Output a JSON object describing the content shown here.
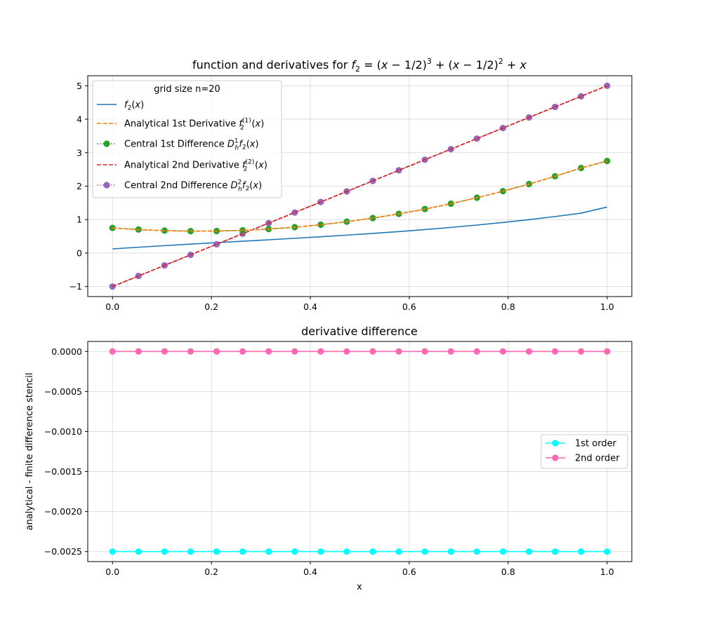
{
  "chart_data": [
    {
      "type": "line",
      "title_parts": {
        "prefix": "function and derivatives for ",
        "lhs": "f",
        "lhs_sub": "2",
        "eq": " = (x − ",
        "half": "1/2",
        "cube_close": ")",
        "cube_exp": "3",
        "plus": " + (x − ",
        "square_exp": "2",
        "tail": " + x"
      },
      "xlim": [
        -0.05,
        1.05
      ],
      "ylim": [
        -1.3,
        5.3
      ],
      "xticks": [
        0.0,
        0.2,
        0.4,
        0.6,
        0.8,
        1.0
      ],
      "xtick_labels": [
        "0.0",
        "0.2",
        "0.4",
        "0.6",
        "0.8",
        "1.0"
      ],
      "yticks": [
        -1,
        0,
        1,
        2,
        3,
        4,
        5
      ],
      "ytick_labels": [
        "−1",
        "0",
        "1",
        "2",
        "3",
        "4",
        "5"
      ],
      "grid": true,
      "legend": {
        "placement": "upper-left",
        "title": "grid size n=20",
        "entries": [
          {
            "main": "f",
            "sub": "2",
            "sup": "",
            "tail": "(x)",
            "prefix": ""
          },
          {
            "prefix": "Analytical 1st Derivative ",
            "main": "f",
            "sub": "2",
            "sup": "(1)",
            "tail": "(x)"
          },
          {
            "prefix": "Central 1st Difference ",
            "main": "D",
            "sub": "h",
            "sup": "1",
            "tail": "f₂(x)"
          },
          {
            "prefix": "Analytical 2nd Derivative ",
            "main": "f",
            "sub": "2",
            "sup": "(2)",
            "tail": "(x)"
          },
          {
            "prefix": "Central 2nd Difference ",
            "main": "D",
            "sub": "h",
            "sup": "2",
            "tail": "f₂(x)"
          }
        ]
      },
      "x": [
        0.0,
        0.05263,
        0.10526,
        0.15789,
        0.21053,
        0.26316,
        0.31579,
        0.36842,
        0.42105,
        0.47368,
        0.52632,
        0.57895,
        0.63158,
        0.68421,
        0.73684,
        0.78947,
        0.84211,
        0.89474,
        0.94737,
        1.0
      ],
      "series": [
        {
          "style": "line",
          "color": "#1f77b4",
          "values": [
            0.125,
            0.1747,
            0.2217,
            0.2668,
            0.3106,
            0.3539,
            0.3974,
            0.4418,
            0.4878,
            0.5361,
            0.5874,
            0.6425,
            0.702,
            0.7667,
            0.8372,
            0.9143,
            0.9987,
            1.0911,
            1.1921,
            1.375
          ]
        },
        {
          "style": "dashed",
          "color": "#ff7f0e",
          "values": [
            0.75,
            0.7008,
            0.669,
            0.6547,
            0.6579,
            0.6787,
            0.7168,
            0.7725,
            0.8458,
            0.9365,
            1.0448,
            1.1704,
            1.3137,
            1.4744,
            1.6526,
            1.8483,
            2.0615,
            2.2922,
            2.5405,
            2.75
          ]
        },
        {
          "style": "dotted-marker",
          "color": "#2ca02c",
          "values": [
            0.7525,
            0.7033,
            0.6715,
            0.6572,
            0.6604,
            0.6812,
            0.7193,
            0.775,
            0.8483,
            0.939,
            1.0473,
            1.1729,
            1.3162,
            1.4769,
            1.6551,
            1.8508,
            2.064,
            2.2947,
            2.543,
            2.7525
          ]
        },
        {
          "style": "dashed",
          "color": "#d62728",
          "values": [
            -1.0,
            -0.6842,
            -0.3684,
            -0.0526,
            0.2632,
            0.5789,
            0.8947,
            1.2105,
            1.5263,
            1.8421,
            2.1579,
            2.4737,
            2.7895,
            3.1053,
            3.4211,
            3.7368,
            4.0526,
            4.3684,
            4.6842,
            5.0
          ]
        },
        {
          "style": "dotted-marker",
          "color": "#9467bd",
          "values": [
            -1.0,
            -0.6842,
            -0.3684,
            -0.0526,
            0.2632,
            0.5789,
            0.8947,
            1.2105,
            1.5263,
            1.8421,
            2.1579,
            2.4737,
            2.7895,
            3.1053,
            3.4211,
            3.7368,
            4.0526,
            4.3684,
            4.6842,
            5.0
          ]
        }
      ]
    },
    {
      "type": "line",
      "title": "derivative difference",
      "xlabel": "x",
      "ylabel": "analytical - finite difference stencil",
      "xlim": [
        -0.05,
        1.05
      ],
      "ylim": [
        -0.002625,
        0.000125
      ],
      "xticks": [
        0.0,
        0.2,
        0.4,
        0.6,
        0.8,
        1.0
      ],
      "xtick_labels": [
        "0.0",
        "0.2",
        "0.4",
        "0.6",
        "0.8",
        "1.0"
      ],
      "yticks": [
        0.0,
        -0.0005,
        -0.001,
        -0.0015,
        -0.002,
        -0.0025
      ],
      "ytick_labels": [
        "0.0000",
        "−0.0005",
        "−0.0010",
        "−0.0015",
        "−0.0020",
        "−0.0025"
      ],
      "grid": true,
      "legend": {
        "placement": "center-right"
      },
      "x": [
        0.0,
        0.05263,
        0.10526,
        0.15789,
        0.21053,
        0.26316,
        0.31579,
        0.36842,
        0.42105,
        0.47368,
        0.52632,
        0.57895,
        0.63158,
        0.68421,
        0.73684,
        0.78947,
        0.84211,
        0.89474,
        0.94737,
        1.0
      ],
      "series": [
        {
          "name": "1st order",
          "color": "#00ffff",
          "values": [
            -0.0025,
            -0.0025,
            -0.0025,
            -0.0025,
            -0.0025,
            -0.0025,
            -0.0025,
            -0.0025,
            -0.0025,
            -0.0025,
            -0.0025,
            -0.0025,
            -0.0025,
            -0.0025,
            -0.0025,
            -0.0025,
            -0.0025,
            -0.0025,
            -0.0025,
            -0.0025
          ]
        },
        {
          "name": "2nd order",
          "color": "#ff69b4",
          "values": [
            0.0,
            0.0,
            0.0,
            0.0,
            0.0,
            0.0,
            0.0,
            0.0,
            0.0,
            0.0,
            0.0,
            0.0,
            0.0,
            0.0,
            0.0,
            0.0,
            0.0,
            0.0,
            0.0,
            0.0
          ]
        }
      ]
    }
  ]
}
